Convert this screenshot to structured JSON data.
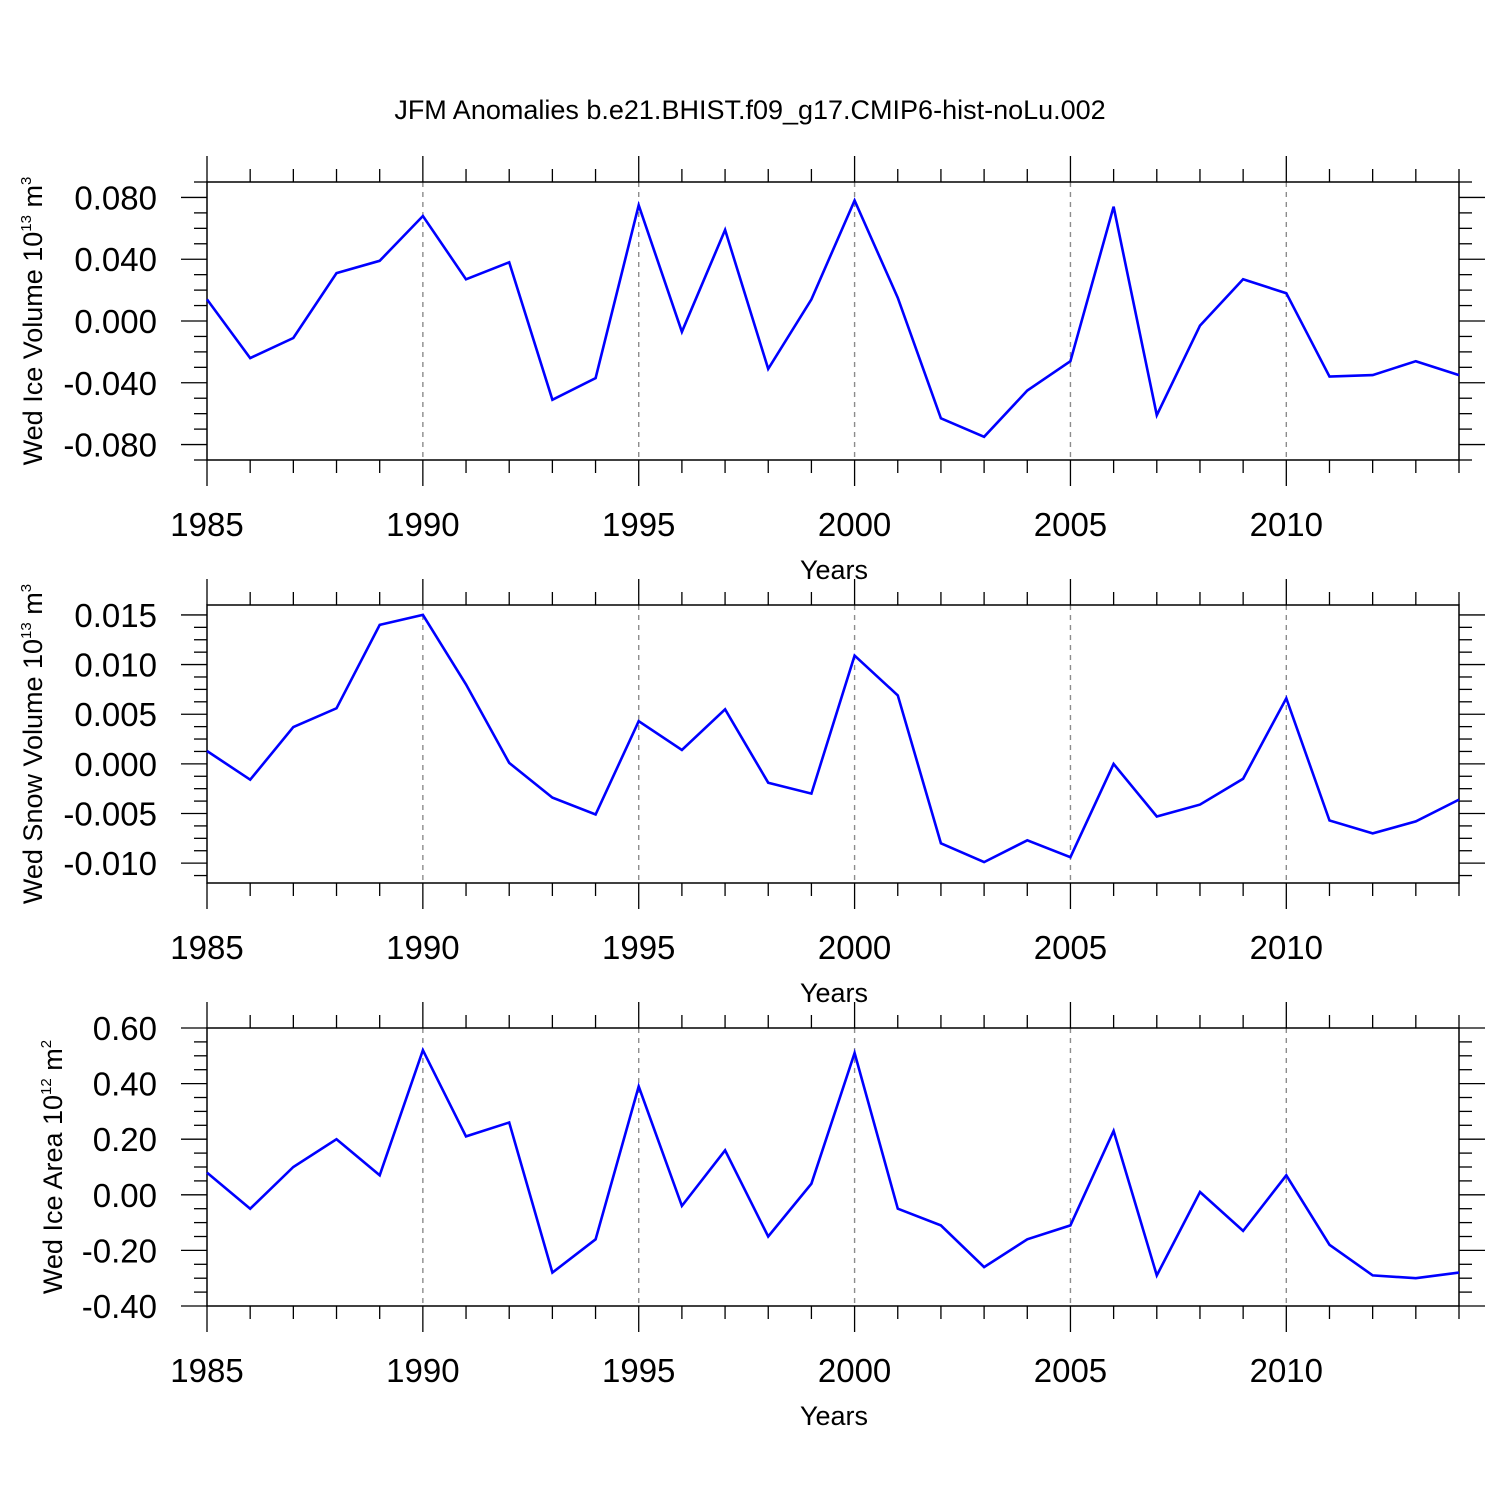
{
  "figure": {
    "title": "JFM Anomalies b.e21.BHIST.f09_g17.CMIP6-hist-noLu.002"
  },
  "style": {
    "line_color": "#0000ff",
    "frame_color": "#000000",
    "grid_color": "#8c8c8c"
  },
  "chart_data": [
    {
      "type": "line",
      "xlabel": "Years",
      "ylabel": {
        "name": "Wed Ice Volume 10",
        "exp": "13",
        "unit": " m",
        "unit_exp": "3"
      },
      "xlim": [
        1985,
        2014
      ],
      "ylim": [
        -0.09,
        0.09
      ],
      "xticks": [
        1985,
        1990,
        1995,
        2000,
        2005,
        2010
      ],
      "xtick_labels": [
        "1985",
        "1990",
        "1995",
        "2000",
        "2005",
        "2010"
      ],
      "yticks": [
        -0.08,
        -0.04,
        0.0,
        0.04,
        0.08
      ],
      "ytick_labels": [
        "-0.080",
        "-0.040",
        "0.000",
        "0.040",
        "0.080"
      ],
      "grid": "vertical dashed at major x ticks",
      "x": [
        1985,
        1986,
        1987,
        1988,
        1989,
        1990,
        1991,
        1992,
        1993,
        1994,
        1995,
        1996,
        1997,
        1998,
        1999,
        2000,
        2001,
        2002,
        2003,
        2004,
        2005,
        2006,
        2007,
        2008,
        2009,
        2010,
        2011,
        2012,
        2013,
        2014
      ],
      "series": [
        {
          "values": [
            0.014,
            -0.024,
            -0.011,
            0.031,
            0.039,
            0.068,
            0.027,
            0.038,
            -0.051,
            -0.037,
            0.075,
            -0.007,
            0.059,
            -0.031,
            0.014,
            0.078,
            0.015,
            -0.063,
            -0.075,
            -0.045,
            -0.026,
            0.074,
            -0.061,
            -0.003,
            0.027,
            0.018,
            -0.036,
            -0.035,
            -0.026,
            -0.035
          ]
        }
      ]
    },
    {
      "type": "line",
      "xlabel": "Years",
      "ylabel": {
        "name": "Wed Snow Volume 10",
        "exp": "13",
        "unit": " m",
        "unit_exp": "3"
      },
      "xlim": [
        1985,
        2014
      ],
      "ylim": [
        -0.012,
        0.016
      ],
      "xticks": [
        1985,
        1990,
        1995,
        2000,
        2005,
        2010
      ],
      "xtick_labels": [
        "1985",
        "1990",
        "1995",
        "2000",
        "2005",
        "2010"
      ],
      "yticks": [
        -0.01,
        -0.005,
        0.0,
        0.005,
        0.01,
        0.015
      ],
      "ytick_labels": [
        "-0.010",
        "-0.005",
        "0.000",
        "0.005",
        "0.010",
        "0.015"
      ],
      "grid": "vertical dashed at major x ticks",
      "x": [
        1985,
        1986,
        1987,
        1988,
        1989,
        1990,
        1991,
        1992,
        1993,
        1994,
        1995,
        1996,
        1997,
        1998,
        1999,
        2000,
        2001,
        2002,
        2003,
        2004,
        2005,
        2006,
        2007,
        2008,
        2009,
        2010,
        2011,
        2012,
        2013,
        2014
      ],
      "series": [
        {
          "values": [
            0.0013,
            -0.0016,
            0.0037,
            0.0056,
            0.014,
            0.015,
            0.008,
            0.0001,
            -0.0034,
            -0.0051,
            0.0043,
            0.0014,
            0.0055,
            -0.0019,
            -0.003,
            0.0109,
            0.0069,
            -0.008,
            -0.0099,
            -0.0077,
            -0.0094,
            0.0,
            -0.0053,
            -0.0041,
            -0.0015,
            0.0066,
            -0.0057,
            -0.007,
            -0.0058,
            -0.0036
          ]
        }
      ]
    },
    {
      "type": "line",
      "xlabel": "Years",
      "ylabel": {
        "name": "Wed Ice Area 10",
        "exp": "12",
        "unit": " m",
        "unit_exp": "2"
      },
      "xlim": [
        1985,
        2014
      ],
      "ylim": [
        -0.4,
        0.6
      ],
      "xticks": [
        1985,
        1990,
        1995,
        2000,
        2005,
        2010
      ],
      "xtick_labels": [
        "1985",
        "1990",
        "1995",
        "2000",
        "2005",
        "2010"
      ],
      "yticks": [
        -0.4,
        -0.2,
        0.0,
        0.2,
        0.4,
        0.6
      ],
      "ytick_labels": [
        "-0.40",
        "-0.20",
        "0.00",
        "0.20",
        "0.40",
        "0.60"
      ],
      "grid": "vertical dashed at major x ticks",
      "x": [
        1985,
        1986,
        1987,
        1988,
        1989,
        1990,
        1991,
        1992,
        1993,
        1994,
        1995,
        1996,
        1997,
        1998,
        1999,
        2000,
        2001,
        2002,
        2003,
        2004,
        2005,
        2006,
        2007,
        2008,
        2009,
        2010,
        2011,
        2012,
        2013,
        2014
      ],
      "series": [
        {
          "values": [
            0.08,
            -0.05,
            0.1,
            0.2,
            0.07,
            0.52,
            0.21,
            0.26,
            -0.28,
            -0.16,
            0.39,
            -0.04,
            0.16,
            -0.15,
            0.04,
            0.51,
            -0.05,
            -0.11,
            -0.26,
            -0.16,
            -0.11,
            0.23,
            -0.29,
            0.01,
            -0.13,
            0.07,
            -0.18,
            -0.29,
            -0.3,
            -0.28
          ]
        }
      ]
    }
  ]
}
